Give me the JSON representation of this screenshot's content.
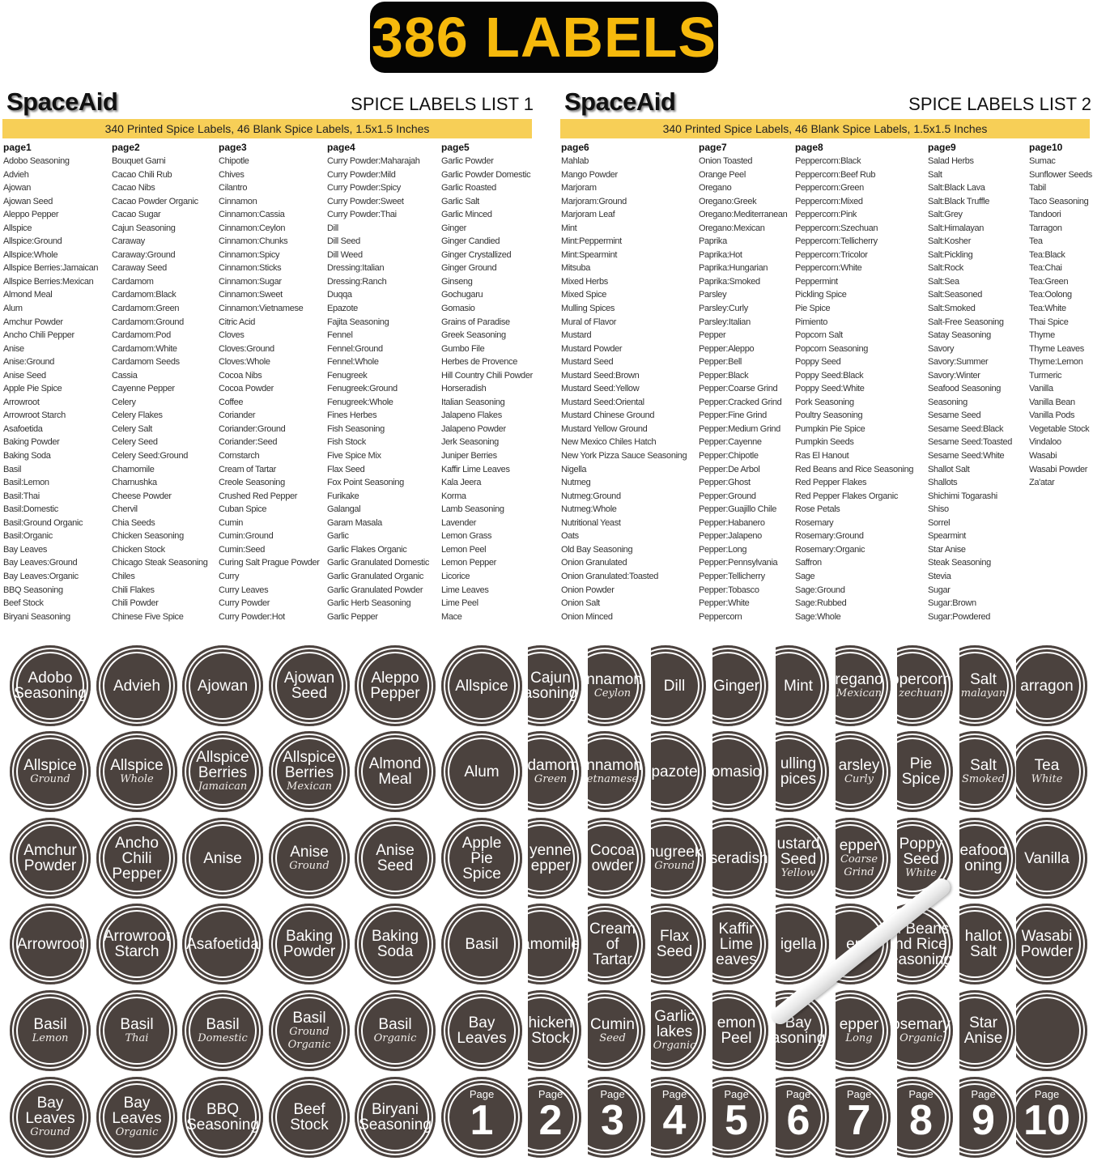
{
  "banner": "386 LABELS",
  "colors": {
    "banner_bg": "#050505",
    "banner_text": "#f6b90c",
    "band": "#f7cf57",
    "label_fill": "#4b423e",
    "label_ring": "#ffffff"
  },
  "lists": [
    {
      "brand": "SpaceAid",
      "title": "SPICE LABELS LIST 1",
      "band": "340 Printed Spice Labels, 46 Blank Spice Labels, 1.5x1.5 Inches",
      "columns": [
        {
          "header": "page1",
          "items": [
            "Adobo Seasoning",
            "Advieh",
            "Ajowan",
            "Ajowan Seed",
            "Aleppo Pepper",
            "Allspice",
            "Allspice:Ground",
            "Allspice:Whole",
            "Allspice Berries:Jamaican",
            "Allspice Berries:Mexican",
            "Almond Meal",
            "Alum",
            "Amchur Powder",
            "Ancho Chili Pepper",
            "Anise",
            "Anise:Ground",
            "Anise Seed",
            "Apple Pie Spice",
            "Arrowroot",
            "Arrowroot Starch",
            "Asafoetida",
            "Baking Powder",
            "Baking Soda",
            "Basil",
            "Basil:Lemon",
            "Basil:Thai",
            "Basil:Domestic",
            "Basil:Ground Organic",
            "Basil:Organic",
            "Bay Leaves",
            "Bay Leaves:Ground",
            "Bay Leaves:Organic",
            "BBQ Seasoning",
            "Beef Stock",
            "Biryani Seasoning"
          ]
        },
        {
          "header": "page2",
          "items": [
            "Bouquet Garni",
            "Cacao Chili Rub",
            "Cacao Nibs",
            "Cacao Powder Organic",
            "Cacao Sugar",
            "Cajun Seasoning",
            "Caraway",
            "Caraway:Ground",
            "Caraway Seed",
            "Cardamom",
            "Cardamom:Black",
            "Cardamom:Green",
            "Cardamom:Ground",
            "Cardamom:Pod",
            "Cardamom:White",
            "Cardamom Seeds",
            "Cassia",
            "Cayenne Pepper",
            "Celery",
            "Celery Flakes",
            "Celery Salt",
            "Celery Seed",
            "Celery Seed:Ground",
            "Chamomile",
            "Charnushka",
            "Cheese Powder",
            "Chervil",
            "Chia Seeds",
            "Chicken Seasoning",
            "Chicken Stock",
            "Chicago Steak Seasoning",
            "Chiles",
            "Chili Flakes",
            "Chili Powder",
            "Chinese Five Spice"
          ]
        },
        {
          "header": "page3",
          "items": [
            "Chipotle",
            "Chives",
            "Cilantro",
            "Cinnamon",
            "Cinnamon:Cassia",
            "Cinnamon:Ceylon",
            "Cinnamon:Chunks",
            "Cinnamon:Spicy",
            "Cinnamon:Sticks",
            "Cinnamon:Sugar",
            "Cinnamon:Sweet",
            "Cinnamon:Vietnamese",
            "Citric Acid",
            "Cloves",
            "Cloves:Ground",
            "Cloves:Whole",
            "Cocoa Nibs",
            "Cocoa Powder",
            "Coffee",
            "Coriander",
            "Coriander:Ground",
            "Coriander:Seed",
            "Cornstarch",
            "Cream of Tartar",
            "Creole Seasoning",
            "Crushed Red Pepper",
            "Cuban Spice",
            "Cumin",
            "Cumin:Ground",
            "Cumin:Seed",
            "Curing Salt Prague Powder",
            "Curry",
            "Curry Leaves",
            "Curry Powder",
            "Curry Powder:Hot"
          ]
        },
        {
          "header": "page4",
          "items": [
            "Curry Powder:Maharajah",
            "Curry Powder:Mild",
            "Curry Powder:Spicy",
            "Curry Powder:Sweet",
            "Curry Powder:Thai",
            "Dill",
            "Dill Seed",
            "Dill Weed",
            "Dressing:Italian",
            "Dressing:Ranch",
            "Duqqa",
            "Epazote",
            "Fajita Seasoning",
            "Fennel",
            "Fennel:Ground",
            "Fennel:Whole",
            "Fenugreek",
            "Fenugreek:Ground",
            "Fenugreek:Whole",
            "Fines Herbes",
            "Fish Seasoning",
            "Fish Stock",
            "Five Spice Mix",
            "Flax Seed",
            "Fox Point Seasoning",
            "Furikake",
            "Galangal",
            "Garam Masala",
            "Garlic",
            "Garlic Flakes Organic",
            "Garlic Granulated Domestic",
            "Garlic Granulated Organic",
            "Garlic Granulated Powder",
            "Garlic Herb Seasoning",
            "Garlic Pepper"
          ]
        },
        {
          "header": "page5",
          "items": [
            "Garlic Powder",
            "Garlic Powder Domestic",
            "Garlic Roasted",
            "Garlic Salt",
            "Garlic Minced",
            "Ginger",
            "Ginger Candied",
            "Ginger Crystallized",
            "Ginger Ground",
            "Ginseng",
            "Gochugaru",
            "Gomasio",
            "Grains of Paradise",
            "Greek Seasoning",
            "Gumbo File",
            "Herbes de Provence",
            "Hill Country Chili Powder",
            "Horseradish",
            "Italian Seasoning",
            "Jalapeno Flakes",
            "Jalapeno Powder",
            "Jerk Seasoning",
            "Juniper Berries",
            "Kaffir Lime Leaves",
            "Kala Jeera",
            "Korma",
            "Lamb Seasoning",
            "Lavender",
            "Lemon Grass",
            "Lemon Peel",
            "Lemon Pepper",
            "Licorice",
            "Lime Leaves",
            "Lime Peel",
            "Mace"
          ]
        }
      ]
    },
    {
      "brand": "SpaceAid",
      "title": "SPICE LABELS LIST 2",
      "band": "340 Printed Spice Labels, 46 Blank Spice Labels, 1.5x1.5 Inches",
      "columns": [
        {
          "header": "page6",
          "items": [
            "Mahlab",
            "Mango Powder",
            "Marjoram",
            "Marjoram:Ground",
            "Marjoram Leaf",
            "Mint",
            "Mint:Peppermint",
            "Mint:Spearmint",
            "Mitsuba",
            "Mixed Herbs",
            "Mixed Spice",
            "Mulling Spices",
            "Mural of Flavor",
            "Mustard",
            "Mustard Powder",
            "Mustard Seed",
            "Mustard Seed:Brown",
            "Mustard Seed:Yellow",
            "Mustard Seed:Oriental",
            "Mustard Chinese Ground",
            "Mustard Yellow Ground",
            "New Mexico Chiles Hatch",
            "New York Pizza Sauce Seasoning",
            "Nigella",
            "Nutmeg",
            "Nutmeg:Ground",
            "Nutmeg:Whole",
            "Nutritional Yeast",
            "Oats",
            "Old Bay Seasoning",
            "Onion Granulated",
            "Onion Granulated:Toasted",
            "Onion Powder",
            "Onion Salt",
            "Onion Minced"
          ]
        },
        {
          "header": "page7",
          "items": [
            "Onion Toasted",
            "Orange Peel",
            "Oregano",
            "Oregano:Greek",
            "Oregano:Mediterranean",
            "Oregano:Mexican",
            "Paprika",
            "Paprika:Hot",
            "Paprika:Hungarian",
            "Paprika:Smoked",
            "Parsley",
            "Parsley:Curly",
            "Parsley:Italian",
            "Pepper",
            "Pepper:Aleppo",
            "Pepper:Bell",
            "Pepper:Black",
            "Pepper:Coarse Grind",
            "Pepper:Cracked Grind",
            "Pepper:Fine Grind",
            "Pepper:Medium Grind",
            "Pepper:Cayenne",
            "Pepper:Chipotle",
            "Pepper:De Arbol",
            "Pepper:Ghost",
            "Pepper:Ground",
            "Pepper:Guajillo Chile",
            "Pepper:Habanero",
            "Pepper:Jalapeno",
            "Pepper:Long",
            "Pepper:Pennsylvania",
            "Pepper:Tellicherry",
            "Pepper:Tobasco",
            "Pepper:White",
            "Peppercorn"
          ]
        },
        {
          "header": "page8",
          "items": [
            "Peppercorn:Black",
            "Peppercorn:Beef Rub",
            "Peppercorn:Green",
            "Peppercorn:Mixed",
            "Peppercorn:Pink",
            "Peppercorn:Szechuan",
            "Peppercorn:Tellicherry",
            "Peppercorn:Tricolor",
            "Peppercorn:White",
            "Peppermint",
            "Pickling Spice",
            "Pie Spice",
            "Pimiento",
            "Popcorn Salt",
            "Popcorn Seasoning",
            "Poppy Seed",
            "Poppy Seed:Black",
            "Poppy Seed:White",
            "Pork Seasoning",
            "Poultry Seasoning",
            "Pumpkin Pie Spice",
            "Pumpkin Seeds",
            "Ras El Hanout",
            "Red Beans and Rice Seasoning",
            "Red Pepper Flakes",
            "Red Pepper Flakes Organic",
            "Rose Petals",
            "Rosemary",
            "Rosemary:Ground",
            "Rosemary:Organic",
            "Saffron",
            "Sage",
            "Sage:Ground",
            "Sage:Rubbed",
            "Sage:Whole"
          ]
        },
        {
          "header": "page9",
          "items": [
            "Salad Herbs",
            "Salt",
            "Salt:Black Lava",
            "Salt:Black Truffle",
            "Salt:Grey",
            "Salt:Himalayan",
            "Salt:Kosher",
            "Salt:Pickling",
            "Salt:Rock",
            "Salt:Sea",
            "Salt:Seasoned",
            "Salt:Smoked",
            "Salt-Free Seasoning",
            "Satay Seasoning",
            "Savory",
            "Savory:Summer",
            "Savory:Winter",
            "Seafood Seasoning",
            "Seasoning",
            "Sesame Seed",
            "Sesame Seed:Black",
            "Sesame Seed:Toasted",
            "Sesame Seed:White",
            "Shallot Salt",
            "Shallots",
            "Shichimi Togarashi",
            "Shiso",
            "Sorrel",
            "Spearmint",
            "Star Anise",
            "Steak Seasoning",
            "Stevia",
            "Sugar",
            "Sugar:Brown",
            "Sugar:Powdered"
          ]
        },
        {
          "header": "page10",
          "items": [
            "Sumac",
            "Sunflower Seeds",
            "Tabil",
            "Taco Seasoning",
            "Tandoori",
            "Tarragon",
            "Tea",
            "Tea:Black",
            "Tea:Chai",
            "Tea:Green",
            "Tea:Oolong",
            "Tea:White",
            "Thai Spice",
            "Thyme",
            "Thyme Leaves",
            "Thyme:Lemon",
            "Turmeric",
            "Vanilla",
            "Vanilla Bean",
            "Vanilla Pods",
            "Vegetable Stock",
            "Vindaloo",
            "Wasabi",
            "Wasabi Powder",
            "Za'atar"
          ]
        }
      ]
    }
  ],
  "labels_full": [
    [
      {
        "m": [
          "Adobo",
          "Seasoning"
        ]
      },
      {
        "m": [
          "Advieh"
        ]
      },
      {
        "m": [
          "Ajowan"
        ]
      },
      {
        "m": [
          "Ajowan",
          "Seed"
        ]
      },
      {
        "m": [
          "Aleppo",
          "Pepper"
        ]
      },
      {
        "m": [
          "Allspice"
        ]
      }
    ],
    [
      {
        "m": [
          "Allspice"
        ],
        "s": [
          "Ground"
        ]
      },
      {
        "m": [
          "Allspice"
        ],
        "s": [
          "Whole"
        ]
      },
      {
        "m": [
          "Allspice",
          "Berries"
        ],
        "s": [
          "Jamaican"
        ]
      },
      {
        "m": [
          "Allspice",
          "Berries"
        ],
        "s": [
          "Mexican"
        ]
      },
      {
        "m": [
          "Almond",
          "Meal"
        ]
      },
      {
        "m": [
          "Alum"
        ]
      }
    ],
    [
      {
        "m": [
          "Amchur",
          "Powder"
        ]
      },
      {
        "m": [
          "Ancho",
          "Chili",
          "Pepper"
        ]
      },
      {
        "m": [
          "Anise"
        ]
      },
      {
        "m": [
          "Anise"
        ],
        "s": [
          "Ground"
        ]
      },
      {
        "m": [
          "Anise",
          "Seed"
        ]
      },
      {
        "m": [
          "Apple",
          "Pie",
          "Spice"
        ]
      }
    ],
    [
      {
        "m": [
          "Arrowroot"
        ]
      },
      {
        "m": [
          "Arrowroot",
          "Starch"
        ]
      },
      {
        "m": [
          "Asafoetida"
        ]
      },
      {
        "m": [
          "Baking",
          "Powder"
        ]
      },
      {
        "m": [
          "Baking",
          "Soda"
        ]
      },
      {
        "m": [
          "Basil"
        ]
      }
    ],
    [
      {
        "m": [
          "Basil"
        ],
        "s": [
          "Lemon"
        ]
      },
      {
        "m": [
          "Basil"
        ],
        "s": [
          "Thai"
        ]
      },
      {
        "m": [
          "Basil"
        ],
        "s": [
          "Domestic"
        ]
      },
      {
        "m": [
          "Basil"
        ],
        "s": [
          "Ground",
          "Organic"
        ]
      },
      {
        "m": [
          "Basil"
        ],
        "s": [
          "Organic"
        ]
      },
      {
        "m": [
          "Bay",
          "Leaves"
        ]
      }
    ],
    [
      {
        "m": [
          "Bay",
          "Leaves"
        ],
        "s": [
          "Ground"
        ]
      },
      {
        "m": [
          "Bay",
          "Leaves"
        ],
        "s": [
          "Organic"
        ]
      },
      {
        "m": [
          "BBQ",
          "Seasoning"
        ]
      },
      {
        "m": [
          "Beef",
          "Stock"
        ]
      },
      {
        "m": [
          "Biryani",
          "Seasoning"
        ]
      },
      {
        "p": "Page",
        "n": "1"
      }
    ]
  ],
  "labels_strips": [
    [
      {
        "m": [
          "Cajun",
          "asoning"
        ]
      },
      {
        "m": [
          "innamon"
        ],
        "s": [
          "Ceylon"
        ]
      },
      {
        "m": [
          "Dill"
        ]
      },
      {
        "m": [
          "Ginger"
        ]
      },
      {
        "m": [
          "Mint"
        ]
      },
      {
        "m": [
          "regano"
        ],
        "s": [
          "Mexican"
        ]
      },
      {
        "m": [
          "ppercorn"
        ],
        "s": [
          "zechuan"
        ]
      },
      {
        "m": [
          "Salt"
        ],
        "s": [
          "malayan"
        ]
      },
      {
        "m": [
          "arragon"
        ]
      }
    ],
    [
      {
        "m": [
          "rdamom"
        ],
        "s": [
          "Green"
        ]
      },
      {
        "m": [
          "innamon"
        ],
        "s": [
          "etnamese"
        ]
      },
      {
        "m": [
          "pazote"
        ]
      },
      {
        "m": [
          "omasio"
        ]
      },
      {
        "m": [
          "ulling",
          "pices"
        ]
      },
      {
        "m": [
          "arsley"
        ],
        "s": [
          "Curly"
        ]
      },
      {
        "m": [
          "Pie",
          "Spice"
        ]
      },
      {
        "m": [
          "Salt"
        ],
        "s": [
          "Smoked"
        ]
      },
      {
        "m": [
          "Tea"
        ],
        "s": [
          "White"
        ]
      }
    ],
    [
      {
        "m": [
          "yenne",
          "epper"
        ]
      },
      {
        "m": [
          "Cocoa",
          "owder"
        ]
      },
      {
        "m": [
          "nugreek"
        ],
        "s": [
          "Ground"
        ]
      },
      {
        "m": [
          "rseradish"
        ]
      },
      {
        "m": [
          "ustard",
          "Seed"
        ],
        "s": [
          "Yellow"
        ]
      },
      {
        "m": [
          "epper"
        ],
        "s": [
          "Coarse",
          "Grind"
        ]
      },
      {
        "m": [
          "Poppy",
          "Seed"
        ],
        "s": [
          "White"
        ]
      },
      {
        "m": [
          "eafood",
          "oning"
        ]
      },
      {
        "m": [
          "Vanilla"
        ]
      }
    ],
    [
      {
        "m": [
          "amomile"
        ]
      },
      {
        "m": [
          "Cream",
          "of",
          "Tartar"
        ]
      },
      {
        "m": [
          "Flax",
          "Seed"
        ]
      },
      {
        "m": [
          "Kaffir",
          "Lime",
          "eaves"
        ]
      },
      {
        "m": [
          "igella"
        ]
      },
      {
        "m": [
          "epp"
        ]
      },
      {
        "m": [
          "d Beans",
          "nd Rice",
          "easoning"
        ]
      },
      {
        "m": [
          "hallot",
          "Salt"
        ]
      },
      {
        "m": [
          "Wasabi",
          "Powder"
        ]
      }
    ],
    [
      {
        "m": [
          "hicken",
          "Stock"
        ]
      },
      {
        "m": [
          "Cumin"
        ],
        "s": [
          "Seed"
        ]
      },
      {
        "m": [
          "Garlic",
          "lakes"
        ],
        "s": [
          "Organic"
        ]
      },
      {
        "m": [
          "emon",
          "Peel"
        ]
      },
      {
        "m": [
          "Bay",
          "asoning"
        ]
      },
      {
        "m": [
          "epper"
        ],
        "s": [
          "Long"
        ]
      },
      {
        "m": [
          "osemary"
        ],
        "s": [
          "Organic"
        ]
      },
      {
        "m": [
          "Star",
          "Anise"
        ]
      },
      {}
    ],
    [
      {
        "p": "Page",
        "n": "2"
      },
      {
        "p": "Page",
        "n": "3"
      },
      {
        "p": "Page",
        "n": "4"
      },
      {
        "p": "Page",
        "n": "5"
      },
      {
        "p": "Page",
        "n": "6"
      },
      {
        "p": "Page",
        "n": "7"
      },
      {
        "p": "Page",
        "n": "8"
      },
      {
        "p": "Page",
        "n": "9"
      },
      {
        "p": "Page",
        "n": "10"
      }
    ]
  ]
}
